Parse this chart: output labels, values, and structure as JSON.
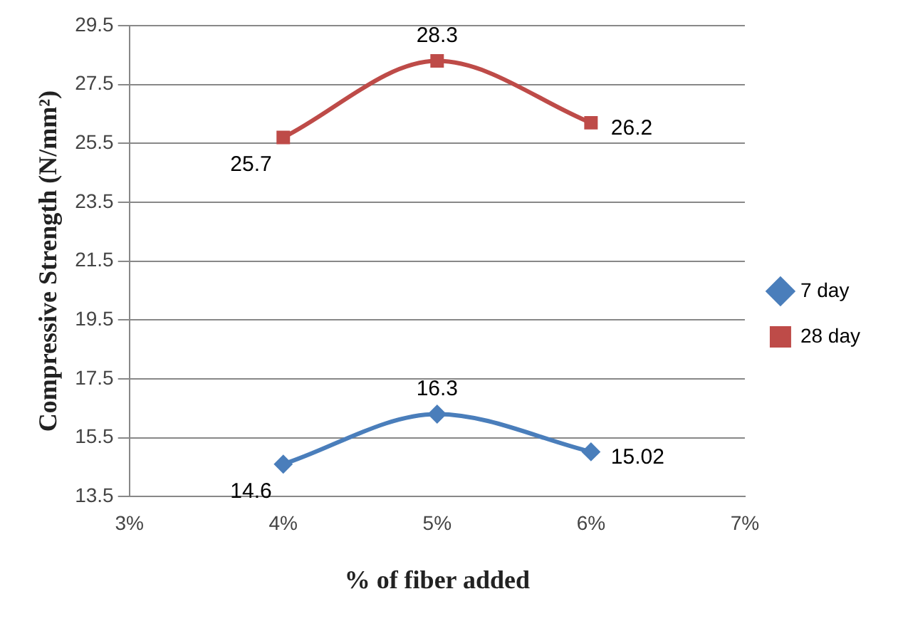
{
  "chart_data": {
    "type": "line",
    "xlabel": "% of fiber added",
    "ylabel": "Compressive Strength (N/mm²)",
    "x": [
      4,
      5,
      6
    ],
    "series": [
      {
        "name": "7 day",
        "color": "#4a7ebb",
        "values": [
          14.6,
          16.3,
          15.02
        ],
        "marker": "diamond"
      },
      {
        "name": "28 day",
        "color": "#be4b48",
        "values": [
          25.7,
          28.3,
          26.2
        ],
        "marker": "square"
      }
    ],
    "xlim": [
      3,
      7
    ],
    "xticks": [
      {
        "value": 3,
        "label": "3%"
      },
      {
        "value": 4,
        "label": "4%"
      },
      {
        "value": 5,
        "label": "5%"
      },
      {
        "value": 6,
        "label": "6%"
      },
      {
        "value": 7,
        "label": "7%"
      }
    ],
    "ylim": [
      13.5,
      29.5
    ],
    "yticks": [
      13.5,
      15.5,
      17.5,
      19.5,
      21.5,
      23.5,
      25.5,
      27.5,
      29.5
    ],
    "grid": "y",
    "legend": "right",
    "data_labels": true,
    "line_style": "solid"
  }
}
